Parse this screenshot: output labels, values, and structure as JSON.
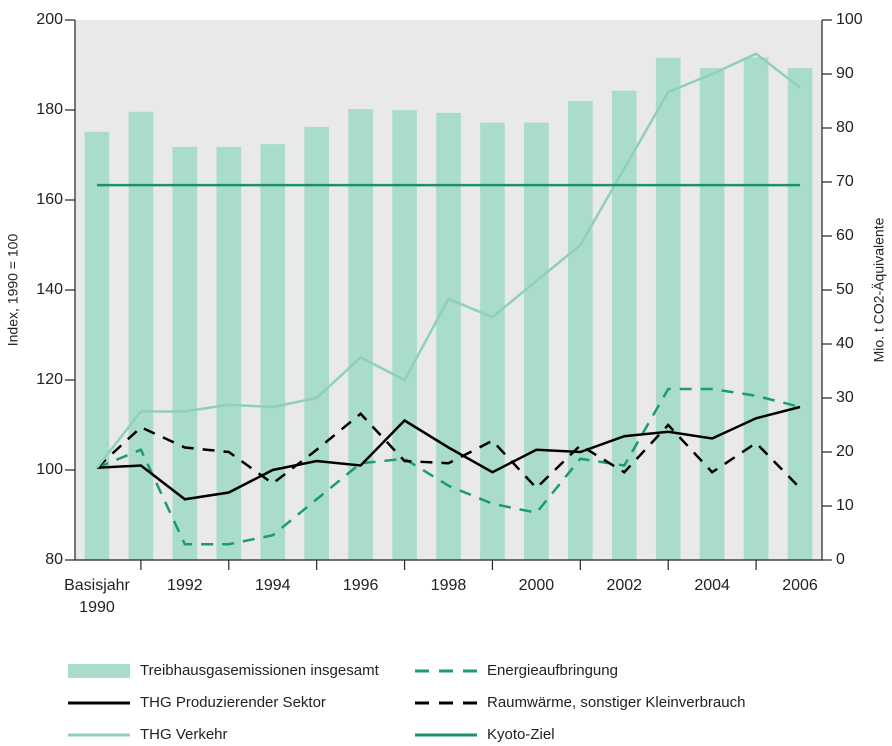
{
  "chart_data": {
    "type": "bar",
    "y_label": "Index, 1990 = 100",
    "y2_label": "Mio. t CO2-Äquivalente",
    "categories": [
      "Basisjahr\n1990",
      null,
      "1992",
      null,
      "1994",
      null,
      "1996",
      null,
      "1998",
      null,
      "2000",
      null,
      "2002",
      null,
      "2004",
      null,
      "2006"
    ],
    "ylim": [
      80,
      200
    ],
    "yticks": [
      80,
      100,
      120,
      140,
      160,
      180,
      200
    ],
    "y2lim": [
      0,
      100
    ],
    "y2ticks": [
      0,
      10,
      20,
      30,
      40,
      50,
      60,
      70,
      80,
      90,
      100
    ],
    "series": [
      {
        "name": "Treibhausgasemissionen insgesamt",
        "type": "bar",
        "axis": "y2",
        "color": "#a9dccb",
        "values": [
          79.3,
          83,
          76.5,
          76.5,
          77,
          80.2,
          83.5,
          83.3,
          82.8,
          81,
          81,
          85,
          86.9,
          93,
          91.1,
          93.1,
          91.1
        ]
      },
      {
        "name": "Energieaufbringung",
        "type": "line",
        "dashed": true,
        "color": "#1a9a7a",
        "values": [
          100.5,
          104.5,
          83.5,
          83.5,
          85.5,
          93.5,
          101.5,
          102.5,
          96.5,
          92.5,
          90.5,
          102.5,
          101,
          118,
          118,
          116.5,
          114
        ]
      },
      {
        "name": "THG Produzierender Sektor",
        "type": "line",
        "dashed": false,
        "color": "#000000",
        "values": [
          100.5,
          101,
          93.5,
          95,
          100,
          102,
          101,
          111,
          105,
          99.5,
          104.5,
          104,
          107.5,
          108.5,
          107,
          111.5,
          114
        ]
      },
      {
        "name": "Raumwärme, sonstiger Kleinverbrauch",
        "type": "line",
        "dashed": true,
        "color": "#000000",
        "values": [
          100.5,
          109.5,
          105,
          104,
          97,
          104.5,
          112.5,
          102,
          101.5,
          106.5,
          96,
          105.5,
          99.5,
          110,
          99.5,
          106,
          96
        ]
      },
      {
        "name": "THG Verkehr",
        "type": "line",
        "dashed": false,
        "color": "#8fd0ba",
        "values": [
          100.5,
          113,
          113,
          114.5,
          114,
          116,
          125,
          120,
          138,
          134,
          142,
          150,
          167,
          184,
          188,
          192.5,
          185
        ]
      },
      {
        "name": "Kyoto-Ziel",
        "type": "line",
        "dashed": false,
        "color": "#1a8f72",
        "values": [
          163.3,
          163.3,
          163.3,
          163.3,
          163.3,
          163.3,
          163.3,
          163.3,
          163.3,
          163.3,
          163.3,
          163.3,
          163.3,
          163.3,
          163.3,
          163.3,
          163.3
        ]
      }
    ],
    "legend_order": [
      0,
      2,
      4,
      1,
      3,
      5
    ]
  }
}
